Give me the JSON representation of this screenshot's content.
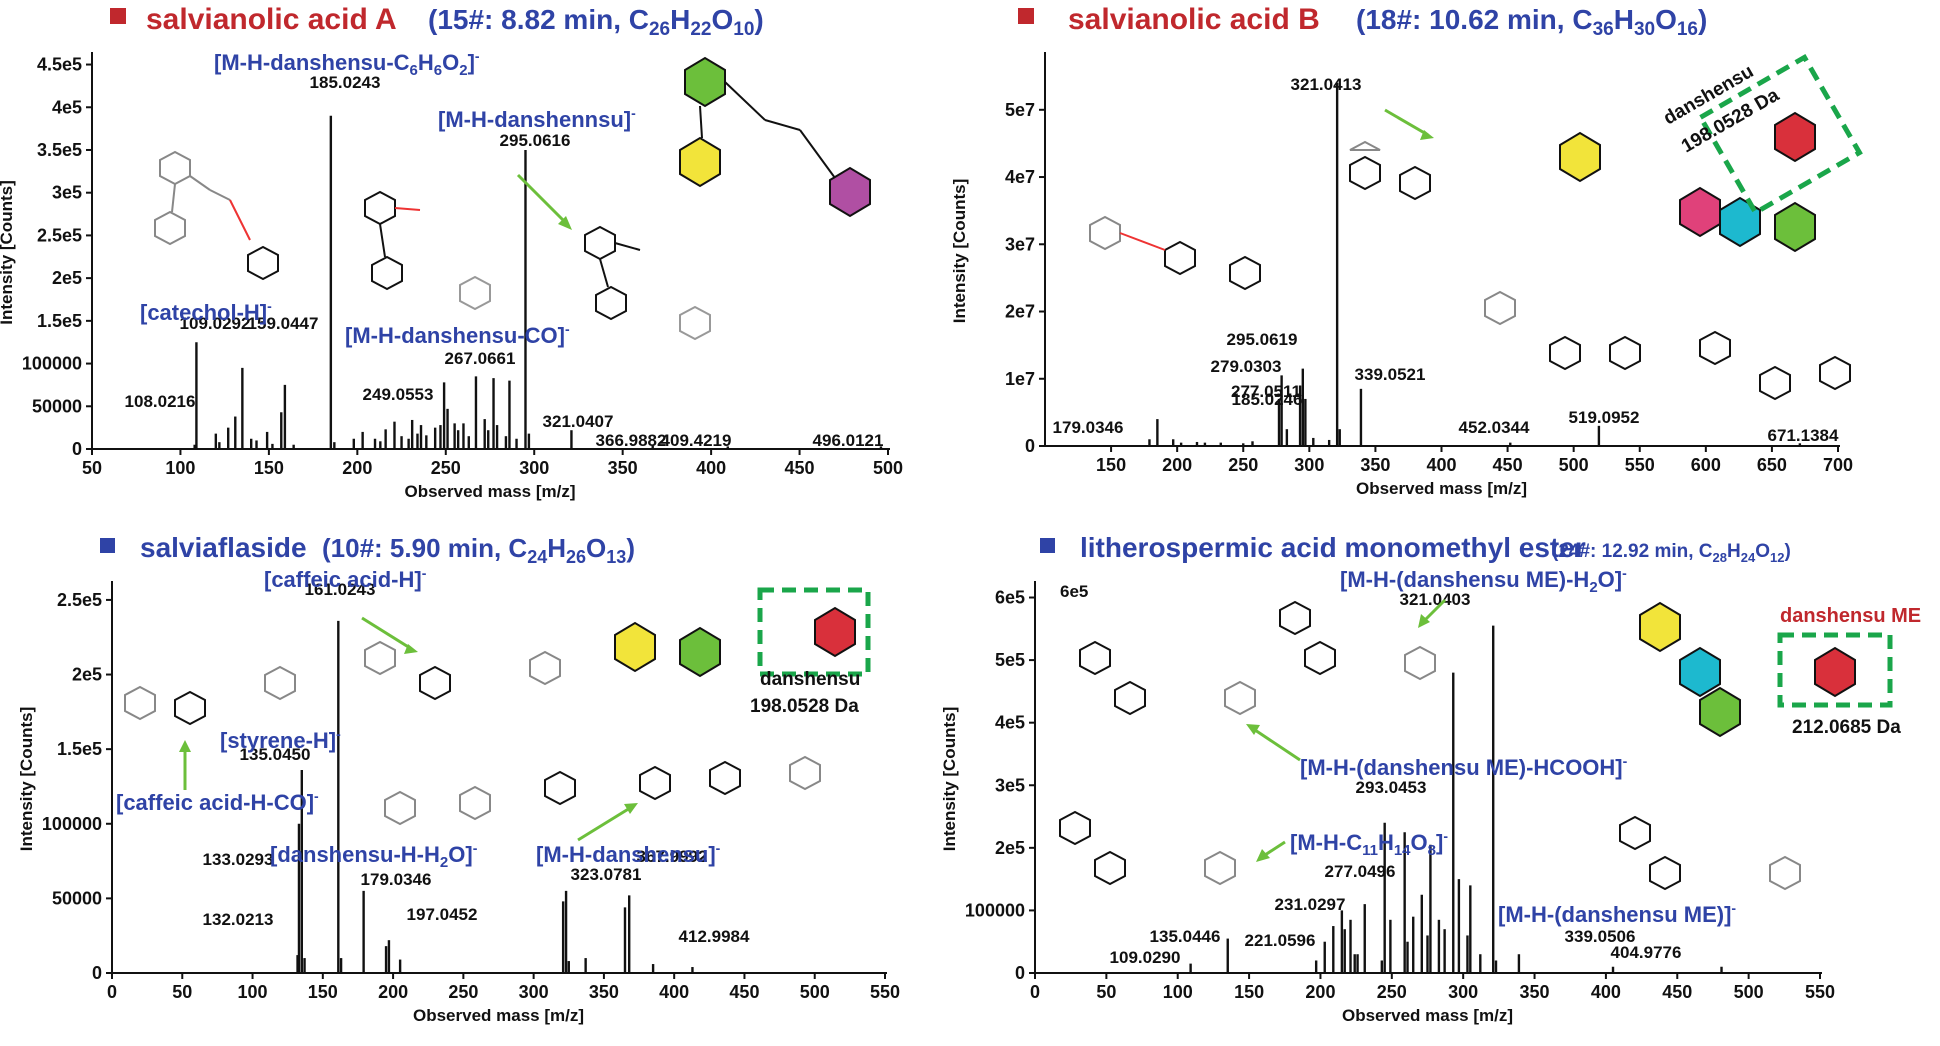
{
  "colors": {
    "red": "#c0282d",
    "blue": "#2f43a6",
    "green": "#6cbf3b",
    "dash": "#1aa64a"
  },
  "chart_data": [
    {
      "type": "bar",
      "title_name": "salvianolic acid A",
      "title_info": "(15#: 8.82 min, C26H22O10)",
      "title_color": "red",
      "xlabel": "Observed mass [m/z]",
      "ylabel": "Intensity [Counts]",
      "xlim": [
        50,
        500
      ],
      "ylim": [
        0,
        460000
      ],
      "xticks": [
        50,
        100,
        150,
        200,
        250,
        300,
        350,
        400,
        450,
        500
      ],
      "yticks": [
        0,
        50000,
        100000,
        150000,
        200000,
        250000,
        300000,
        350000,
        400000,
        450000
      ],
      "ytick_labels": [
        "0",
        "50000",
        "100000",
        "1.5e5",
        "2e5",
        "2.5e5",
        "3e5",
        "3.5e5",
        "4e5",
        "4.5e5"
      ],
      "peaks": [
        [
          108.0216,
          5000
        ],
        [
          109.0292,
          125000
        ],
        [
          120,
          18000
        ],
        [
          122,
          8000
        ],
        [
          127,
          25000
        ],
        [
          131,
          38000
        ],
        [
          135,
          95000
        ],
        [
          140,
          12000
        ],
        [
          143,
          10000
        ],
        [
          149,
          20000
        ],
        [
          152,
          6000
        ],
        [
          157,
          43000
        ],
        [
          159.0447,
          75000
        ],
        [
          164,
          5000
        ],
        [
          185.0243,
          390000
        ],
        [
          187,
          8000
        ],
        [
          198,
          12000
        ],
        [
          203,
          20000
        ],
        [
          210,
          12000
        ],
        [
          213,
          9000
        ],
        [
          216,
          23000
        ],
        [
          221,
          32000
        ],
        [
          225,
          15000
        ],
        [
          229,
          12000
        ],
        [
          231,
          34000
        ],
        [
          234,
          18000
        ],
        [
          236,
          28000
        ],
        [
          239,
          16000
        ],
        [
          244,
          25000
        ],
        [
          247,
          28000
        ],
        [
          249.0553,
          78000
        ],
        [
          251,
          47000
        ],
        [
          255,
          30000
        ],
        [
          257,
          22000
        ],
        [
          260,
          30000
        ],
        [
          263,
          15000
        ],
        [
          267.0661,
          85000
        ],
        [
          272,
          35000
        ],
        [
          274,
          22000
        ],
        [
          277,
          83000
        ],
        [
          279,
          28000
        ],
        [
          284,
          15000
        ],
        [
          286,
          80000
        ],
        [
          290,
          12000
        ],
        [
          295.0616,
          350000
        ],
        [
          297,
          18000
        ],
        [
          321.0407,
          22000
        ],
        [
          366.9882,
          4000
        ],
        [
          409.4219,
          3000
        ],
        [
          496.0121,
          3000
        ]
      ],
      "peak_labels": [
        "108.0216",
        "109.0292",
        "159.0447",
        "185.0243",
        "249.0553",
        "267.0661",
        "295.0616",
        "321.0407",
        "366.9882",
        "409.4219",
        "496.0121"
      ],
      "fragments": [
        "[M-H-danshensu-C6H6O2]-",
        "[M-H-danshennsu]-",
        "[catechol-H]-",
        "[M-H-danshensu-CO]-"
      ]
    },
    {
      "type": "bar",
      "title_name": "salvianolic acid B",
      "title_info": "(18#: 10.62 min, C36H30O16)",
      "title_color": "red",
      "xlabel": "Observed mass [m/z]",
      "ylabel": "Intensity [Counts]",
      "xlim": [
        100,
        700
      ],
      "ylim": [
        0,
        58000000
      ],
      "xticks": [
        150,
        200,
        250,
        300,
        350,
        400,
        450,
        500,
        550,
        600,
        650,
        700
      ],
      "yticks": [
        0,
        10000000,
        20000000,
        30000000,
        40000000,
        50000000
      ],
      "ytick_labels": [
        "0",
        "1e7",
        "2e7",
        "3e7",
        "4e7",
        "5e7"
      ],
      "peaks": [
        [
          179.0346,
          1000000
        ],
        [
          185.0246,
          4000000
        ],
        [
          197,
          1000000
        ],
        [
          203,
          500000
        ],
        [
          215,
          600000
        ],
        [
          221,
          500000
        ],
        [
          233,
          500000
        ],
        [
          250,
          400000
        ],
        [
          257,
          700000
        ],
        [
          277.0511,
          7000000
        ],
        [
          279.0303,
          10500000
        ],
        [
          283,
          2500000
        ],
        [
          293,
          9000000
        ],
        [
          295.0619,
          11500000
        ],
        [
          297,
          7000000
        ],
        [
          303,
          1200000
        ],
        [
          315,
          900000
        ],
        [
          321.0413,
          54000000
        ],
        [
          323,
          2500000
        ],
        [
          339.0521,
          8500000
        ],
        [
          452.0344,
          500000
        ],
        [
          519.0952,
          3000000
        ],
        [
          671.1384,
          400000
        ]
      ],
      "peak_labels": [
        "179.0346",
        "185.0246",
        "277.0511",
        "279.0303",
        "295.0619",
        "321.0413",
        "339.0521",
        "452.0344",
        "519.0952",
        "671.1384"
      ],
      "box_label": "danshensu 198.0528 Da"
    },
    {
      "type": "bar",
      "title_name": "salviaflaside",
      "title_info": "(10#: 5.90 min, C24H26O13)",
      "title_color": "blue",
      "xlabel": "Observed mass [m/z]",
      "ylabel": "Intensity [Counts]",
      "xlim": [
        0,
        550
      ],
      "ylim": [
        0,
        260000
      ],
      "xticks": [
        0,
        50,
        100,
        150,
        200,
        250,
        300,
        350,
        400,
        450,
        500,
        550
      ],
      "yticks": [
        0,
        50000,
        100000,
        150000,
        200000,
        250000
      ],
      "ytick_labels": [
        "0",
        "50000",
        "100000",
        "1.5e5",
        "2e5",
        "2.5e5"
      ],
      "peaks": [
        [
          132.0213,
          12000
        ],
        [
          133.0293,
          100000
        ],
        [
          135.045,
          136000
        ],
        [
          137,
          10000
        ],
        [
          161.0243,
          236000
        ],
        [
          163,
          10000
        ],
        [
          179.0346,
          55000
        ],
        [
          195,
          18000
        ],
        [
          197.0452,
          22000
        ],
        [
          205,
          9000
        ],
        [
          321,
          48000
        ],
        [
          323.0781,
          55000
        ],
        [
          325,
          8000
        ],
        [
          337,
          10000
        ],
        [
          365,
          44000
        ],
        [
          367.9992,
          52000
        ],
        [
          385,
          6000
        ],
        [
          412.9984,
          4000
        ]
      ],
      "peak_labels": [
        "132.0213",
        "133.0293",
        "135.0450",
        "161.0243",
        "179.0346",
        "197.0452",
        "323.0781",
        "367.9992",
        "412.9984"
      ],
      "fragments": [
        "[caffeic acid-H]-",
        "[styrene-H]-",
        "[caffeic acid-H-CO]-",
        "[danshensu-H-H2O]-",
        "[M-H-danshensu]-"
      ],
      "box_label": "danshensu 198.0528 Da"
    },
    {
      "type": "bar",
      "title_name": "litherospermic acid monomethyl ester",
      "title_info": "(24#: 12.92 min, C28H24O12)",
      "title_color": "blue",
      "xlabel": "Observed mass [m/z]",
      "ylabel": "Intensity [Counts]",
      "xlim": [
        0,
        550
      ],
      "ylim": [
        0,
        620000
      ],
      "xticks": [
        0,
        50,
        100,
        150,
        200,
        250,
        300,
        350,
        400,
        450,
        500,
        550
      ],
      "yticks": [
        0,
        100000,
        200000,
        300000,
        400000,
        500000,
        600000
      ],
      "ytick_labels": [
        "0",
        "100000",
        "2e5",
        "3e5",
        "4e5",
        "5e5",
        "6e5"
      ],
      "peaks": [
        [
          109.029,
          15000
        ],
        [
          135.0446,
          55000
        ],
        [
          197,
          20000
        ],
        [
          203,
          50000
        ],
        [
          209,
          75000
        ],
        [
          215,
          100000
        ],
        [
          217,
          70000
        ],
        [
          221.0596,
          85000
        ],
        [
          224,
          30000
        ],
        [
          226,
          30000
        ],
        [
          231.0297,
          110000
        ],
        [
          243,
          20000
        ],
        [
          245,
          240000
        ],
        [
          249,
          85000
        ],
        [
          259,
          225000
        ],
        [
          261,
          50000
        ],
        [
          265,
          90000
        ],
        [
          271,
          125000
        ],
        [
          275,
          60000
        ],
        [
          277.0496,
          205000
        ],
        [
          283,
          85000
        ],
        [
          287,
          70000
        ],
        [
          293.0453,
          480000
        ],
        [
          297,
          150000
        ],
        [
          303,
          60000
        ],
        [
          305,
          140000
        ],
        [
          312,
          30000
        ],
        [
          321.0403,
          555000
        ],
        [
          323,
          20000
        ],
        [
          339.0506,
          30000
        ],
        [
          404.9776,
          10000
        ],
        [
          481,
          10000
        ]
      ],
      "peak_labels": [
        "109.0290",
        "135.0446",
        "221.0596",
        "231.0297",
        "277.0496",
        "293.0453",
        "321.0403",
        "339.0506",
        "404.9776"
      ],
      "fragments": [
        "[M-H-(danshensu ME)-H2O]-",
        "[M-H-(danshensu ME)-HCOOH]-",
        "[M-H-C11H14O8]-",
        "[M-H-(danshensu ME)]-"
      ],
      "box_title": "danshensu ME",
      "box_label": "212.0685 Da",
      "inset_value": "6e5"
    }
  ]
}
